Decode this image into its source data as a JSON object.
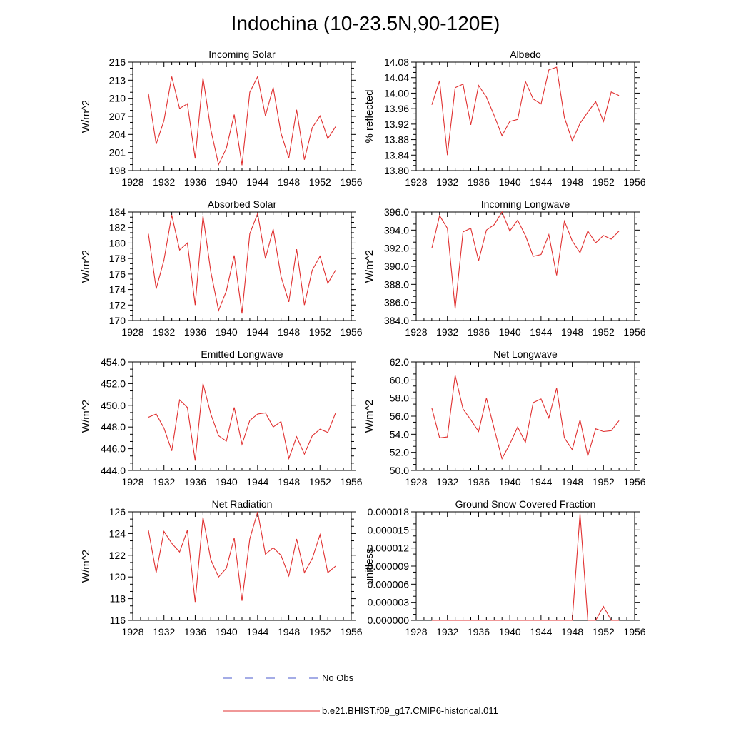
{
  "figure": {
    "title": "Indochina (10-23.5N,90-120E)",
    "legend": [
      {
        "label": "No Obs",
        "color": "#4a5acd",
        "dash": "dashed"
      },
      {
        "label": "b.e21.BHIST.f09_g17.CMIP6-historical.011",
        "color": "#e03030",
        "dash": "solid"
      }
    ]
  },
  "chart_data": [
    {
      "type": "line",
      "title": "Incoming Solar",
      "ylabel": "W/m^2",
      "xlim": [
        1928,
        1956
      ],
      "xticks": [
        "1928",
        "1932",
        "1936",
        "1940",
        "1944",
        "1948",
        "1952",
        "1956"
      ],
      "ylim": [
        198,
        216
      ],
      "yticks": [
        "198",
        "201",
        "204",
        "207",
        "210",
        "213",
        "216"
      ],
      "series": [
        {
          "color": "#e03030",
          "x": [
            1930,
            1931,
            1932,
            1933,
            1934,
            1935,
            1936,
            1937,
            1938,
            1939,
            1940,
            1941,
            1942,
            1943,
            1944,
            1945,
            1946,
            1947,
            1948,
            1949,
            1950,
            1951,
            1952,
            1953,
            1954
          ],
          "y": [
            210.8,
            202.4,
            206.3,
            213.6,
            208.3,
            209.1,
            200.0,
            213.4,
            204.8,
            199.0,
            201.7,
            207.3,
            198.9,
            211.0,
            213.6,
            207.1,
            211.8,
            204.2,
            200.1,
            208.1,
            199.8,
            205.1,
            207.1,
            203.3,
            205.3
          ]
        }
      ]
    },
    {
      "type": "line",
      "title": "Albedo",
      "ylabel": "% reflected",
      "xlim": [
        1928,
        1956
      ],
      "xticks": [
        "1928",
        "1932",
        "1936",
        "1940",
        "1944",
        "1948",
        "1952",
        "1956"
      ],
      "ylim": [
        13.8,
        14.08
      ],
      "yticks": [
        "13.80",
        "13.84",
        "13.88",
        "13.92",
        "13.96",
        "14.00",
        "14.04",
        "14.08"
      ],
      "series": [
        {
          "color": "#e03030",
          "x": [
            1930,
            1931,
            1932,
            1933,
            1934,
            1935,
            1936,
            1937,
            1938,
            1939,
            1940,
            1941,
            1942,
            1943,
            1944,
            1945,
            1946,
            1947,
            1948,
            1949,
            1950,
            1951,
            1952,
            1953,
            1954
          ],
          "y": [
            13.97,
            14.032,
            13.84,
            14.014,
            14.023,
            13.918,
            14.02,
            13.99,
            13.942,
            13.89,
            13.927,
            13.932,
            14.03,
            13.985,
            13.972,
            14.06,
            14.067,
            13.937,
            13.877,
            13.922,
            13.951,
            13.978,
            13.927,
            14.003,
            13.994
          ]
        }
      ]
    },
    {
      "type": "line",
      "title": "Absorbed Solar",
      "ylabel": "W/m^2",
      "xlim": [
        1928,
        1956
      ],
      "xticks": [
        "1928",
        "1932",
        "1936",
        "1940",
        "1944",
        "1948",
        "1952",
        "1956"
      ],
      "ylim": [
        170,
        184
      ],
      "yticks": [
        "170",
        "172",
        "174",
        "176",
        "178",
        "180",
        "182",
        "184"
      ],
      "series": [
        {
          "color": "#e03030",
          "x": [
            1930,
            1931,
            1932,
            1933,
            1934,
            1935,
            1936,
            1937,
            1938,
            1939,
            1940,
            1941,
            1942,
            1943,
            1944,
            1945,
            1946,
            1947,
            1948,
            1949,
            1950,
            1951,
            1952,
            1953,
            1954
          ],
          "y": [
            181.2,
            174.1,
            177.8,
            183.6,
            179.1,
            180.0,
            172.0,
            183.5,
            176.3,
            171.3,
            173.8,
            178.4,
            170.9,
            181.2,
            183.8,
            178.0,
            181.8,
            175.7,
            172.4,
            179.2,
            172.0,
            176.5,
            178.3,
            174.8,
            176.5
          ]
        }
      ]
    },
    {
      "type": "line",
      "title": "Incoming Longwave",
      "ylabel": "W/m^2",
      "xlim": [
        1928,
        1956
      ],
      "xticks": [
        "1928",
        "1932",
        "1936",
        "1940",
        "1944",
        "1948",
        "1952",
        "1956"
      ],
      "ylim": [
        384.0,
        396.0
      ],
      "yticks": [
        "384.0",
        "386.0",
        "388.0",
        "390.0",
        "392.0",
        "394.0",
        "396.0"
      ],
      "series": [
        {
          "color": "#e03030",
          "x": [
            1930,
            1931,
            1932,
            1933,
            1934,
            1935,
            1936,
            1937,
            1938,
            1939,
            1940,
            1941,
            1942,
            1943,
            1944,
            1945,
            1946,
            1947,
            1948,
            1949,
            1950,
            1951,
            1952,
            1953,
            1954
          ],
          "y": [
            392.0,
            395.6,
            394.2,
            385.3,
            393.8,
            394.2,
            390.6,
            394.0,
            394.6,
            396.0,
            393.9,
            395.1,
            393.4,
            391.1,
            391.3,
            393.5,
            389.0,
            395.0,
            392.8,
            391.5,
            393.9,
            392.6,
            393.4,
            393.0,
            393.9
          ]
        }
      ]
    },
    {
      "type": "line",
      "title": "Emitted Longwave",
      "ylabel": "W/m^2",
      "xlim": [
        1928,
        1956
      ],
      "xticks": [
        "1928",
        "1932",
        "1936",
        "1940",
        "1944",
        "1948",
        "1952",
        "1956"
      ],
      "ylim": [
        444.0,
        454.0
      ],
      "yticks": [
        "444.0",
        "446.0",
        "448.0",
        "450.0",
        "452.0",
        "454.0"
      ],
      "series": [
        {
          "color": "#e03030",
          "x": [
            1930,
            1931,
            1932,
            1933,
            1934,
            1935,
            1936,
            1937,
            1938,
            1939,
            1940,
            1941,
            1942,
            1943,
            1944,
            1945,
            1946,
            1947,
            1948,
            1949,
            1950,
            1951,
            1952,
            1953,
            1954
          ],
          "y": [
            448.9,
            449.2,
            447.9,
            445.8,
            450.5,
            449.8,
            444.9,
            452.0,
            449.2,
            447.2,
            446.7,
            449.8,
            446.4,
            448.6,
            449.2,
            449.3,
            448.0,
            448.5,
            445.1,
            447.1,
            445.5,
            447.2,
            447.8,
            447.5,
            449.3
          ]
        }
      ]
    },
    {
      "type": "line",
      "title": "Net Longwave",
      "ylabel": "W/m^2",
      "xlim": [
        1928,
        1956
      ],
      "xticks": [
        "1928",
        "1932",
        "1936",
        "1940",
        "1944",
        "1948",
        "1952",
        "1956"
      ],
      "ylim": [
        50.0,
        62.0
      ],
      "yticks": [
        "50.0",
        "52.0",
        "54.0",
        "56.0",
        "58.0",
        "60.0",
        "62.0"
      ],
      "series": [
        {
          "color": "#e03030",
          "x": [
            1930,
            1931,
            1932,
            1933,
            1934,
            1935,
            1936,
            1937,
            1938,
            1939,
            1940,
            1941,
            1942,
            1943,
            1944,
            1945,
            1946,
            1947,
            1948,
            1949,
            1950,
            1951,
            1952,
            1953,
            1954
          ],
          "y": [
            56.9,
            53.6,
            53.7,
            60.5,
            56.8,
            55.6,
            54.3,
            58.0,
            54.6,
            51.3,
            52.9,
            54.8,
            53.1,
            57.5,
            57.9,
            55.8,
            59.1,
            53.6,
            52.3,
            55.6,
            51.6,
            54.6,
            54.3,
            54.4,
            55.5
          ]
        }
      ]
    },
    {
      "type": "line",
      "title": "Net Radiation",
      "ylabel": "W/m^2",
      "xlim": [
        1928,
        1956
      ],
      "xticks": [
        "1928",
        "1932",
        "1936",
        "1940",
        "1944",
        "1948",
        "1952",
        "1956"
      ],
      "ylim": [
        116,
        126
      ],
      "yticks": [
        "116",
        "118",
        "120",
        "122",
        "124",
        "126"
      ],
      "series": [
        {
          "color": "#e03030",
          "x": [
            1930,
            1931,
            1932,
            1933,
            1934,
            1935,
            1936,
            1937,
            1938,
            1939,
            1940,
            1941,
            1942,
            1943,
            1944,
            1945,
            1946,
            1947,
            1948,
            1949,
            1950,
            1951,
            1952,
            1953,
            1954
          ],
          "y": [
            124.3,
            120.4,
            124.2,
            123.1,
            122.3,
            124.3,
            117.7,
            125.5,
            121.6,
            120.0,
            120.8,
            123.6,
            117.8,
            123.5,
            126.0,
            122.1,
            122.7,
            122.0,
            120.1,
            123.5,
            120.4,
            121.7,
            123.9,
            120.4,
            121.0
          ]
        }
      ]
    },
    {
      "type": "line",
      "title": "Ground Snow Covered Fraction",
      "ylabel": "unitless",
      "xlim": [
        1928,
        1956
      ],
      "xticks": [
        "1928",
        "1932",
        "1936",
        "1940",
        "1944",
        "1948",
        "1952",
        "1956"
      ],
      "ylim": [
        0,
        1.8e-05
      ],
      "yticks": [
        "0.000000",
        "0.000003",
        "0.000006",
        "0.000009",
        "0.000012",
        "0.000015",
        "0.000018"
      ],
      "series": [
        {
          "color": "#e03030",
          "x": [
            1930,
            1931,
            1932,
            1933,
            1934,
            1935,
            1936,
            1937,
            1938,
            1939,
            1940,
            1941,
            1942,
            1943,
            1944,
            1945,
            1946,
            1947,
            1948,
            1949,
            1950,
            1951,
            1952,
            1953,
            1954
          ],
          "y": [
            0,
            0,
            0,
            0,
            0,
            0,
            0,
            0,
            0,
            0,
            0,
            0,
            0,
            0,
            0,
            0,
            0,
            0,
            0,
            1.77e-05,
            0,
            0,
            2.3e-06,
            0,
            0
          ]
        }
      ]
    }
  ]
}
